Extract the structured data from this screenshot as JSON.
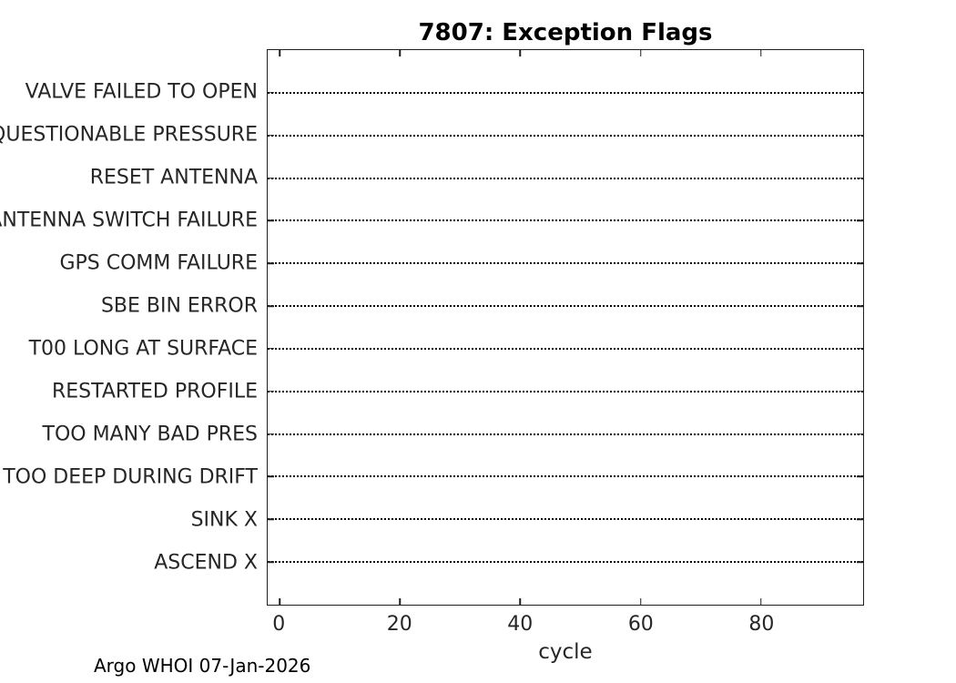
{
  "figure": {
    "title": "7807: Exception Flags",
    "caption": "Argo WHOI 07-Jan-2026"
  },
  "chart_data": {
    "type": "scatter",
    "title": "7807: Exception Flags",
    "xlabel": "cycle",
    "ylabel": "",
    "categories": [
      "VALVE FAILED TO OPEN",
      "QUESTIONABLE PRESSURE",
      "RESET ANTENNA",
      "ANTENNA SWITCH FAILURE",
      "GPS COMM FAILURE",
      "SBE BIN ERROR",
      "T00 LONG AT SURFACE",
      "RESTARTED PROFILE",
      "TOO MANY BAD PRES",
      "TOO DEEP DURING DRIFT",
      "SINK X",
      "ASCEND X"
    ],
    "points": [],
    "x_ticks": [
      0,
      20,
      40,
      60,
      80
    ],
    "xlim": [
      -2,
      97
    ],
    "grid": "horizontal dotted baseline per category, ticks mirrored on all four box edges",
    "legend": "none",
    "colors": {
      "text": "#262626",
      "title": "#000000",
      "line": "#000000",
      "axis": "#1f1f1f",
      "background": "#ffffff"
    }
  }
}
